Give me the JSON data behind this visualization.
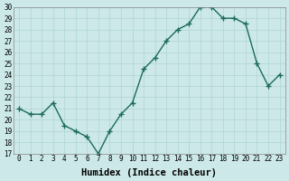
{
  "xlabel": "Humidex (Indice chaleur)",
  "ylabel": "",
  "x_values": [
    0,
    1,
    2,
    3,
    4,
    5,
    6,
    7,
    8,
    9,
    10,
    11,
    12,
    13,
    14,
    15,
    16,
    17,
    18,
    19,
    20,
    21,
    22,
    23
  ],
  "y_values": [
    21,
    20.5,
    20.5,
    21.5,
    19.5,
    19,
    18.5,
    17,
    19,
    20.5,
    21.5,
    24.5,
    25.5,
    27,
    28,
    28.5,
    30,
    30,
    29,
    29,
    28.5,
    25,
    23,
    24
  ],
  "line_color": "#1a6b5a",
  "marker": "+",
  "marker_size": 4,
  "marker_lw": 1.0,
  "bg_color": "#cce8e8",
  "grid_color": "#b0d4d4",
  "ylim": [
    17,
    30
  ],
  "xlim": [
    -0.5,
    23.5
  ],
  "yticks": [
    17,
    18,
    19,
    20,
    21,
    22,
    23,
    24,
    25,
    26,
    27,
    28,
    29,
    30
  ],
  "xticks": [
    0,
    1,
    2,
    3,
    4,
    5,
    6,
    7,
    8,
    9,
    10,
    11,
    12,
    13,
    14,
    15,
    16,
    17,
    18,
    19,
    20,
    21,
    22,
    23
  ],
  "tick_fontsize": 5.5,
  "label_fontsize": 7.5,
  "line_width": 1.0
}
